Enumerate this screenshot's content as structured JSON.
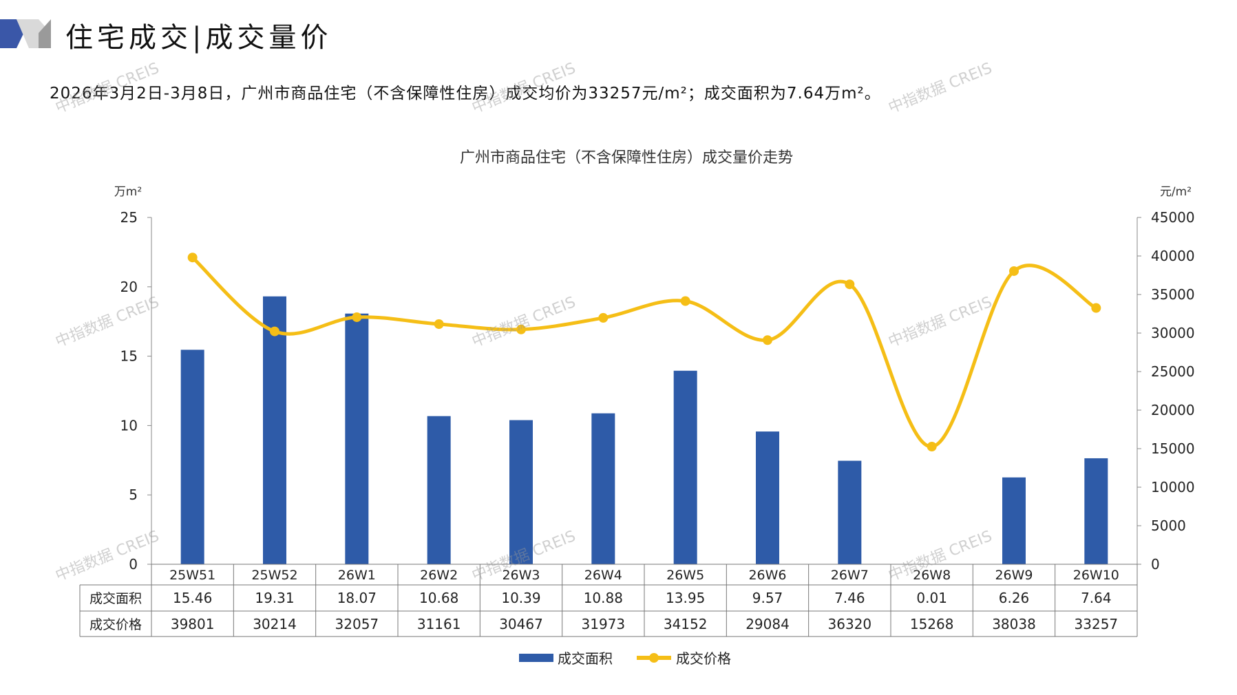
{
  "header": {
    "title": "住宅成交|成交量价",
    "summary": "2026年3月2日-3月8日，广州市商品住宅（不含保障性住房）成交均价为33257元/m²；成交面积为7.64万m²。"
  },
  "watermark": "中指数据 CREIS",
  "colors": {
    "bar": "#2E5BA8",
    "line": "#F5BE16",
    "logo_blue": "#3A57A8",
    "logo_gray": "#9A9A9A"
  },
  "chart_data": {
    "type": "bar+line",
    "title": "广州市商品住宅（不含保障性住房）成交量价走势",
    "categories": [
      "25W51",
      "25W52",
      "26W1",
      "26W2",
      "26W3",
      "26W4",
      "26W5",
      "26W6",
      "26W7",
      "26W8",
      "26W9",
      "26W10"
    ],
    "series": [
      {
        "name": "成交面积",
        "type": "bar",
        "axis": "left",
        "values": [
          15.46,
          19.31,
          18.07,
          10.68,
          10.39,
          10.88,
          13.95,
          9.57,
          7.46,
          0.01,
          6.26,
          7.64
        ],
        "display": [
          "15.46",
          "19.31",
          "18.07",
          "10.68",
          "10.39",
          "10.88",
          "13.95",
          "9.57",
          "7.46",
          "0.01",
          "6.26",
          "7.64"
        ]
      },
      {
        "name": "成交价格",
        "type": "line",
        "axis": "right",
        "values": [
          39801,
          30214,
          32057,
          31161,
          30467,
          31973,
          34152,
          29084,
          36320,
          15268,
          38038,
          33257
        ]
      }
    ],
    "ylabel_left": "万m²",
    "ylabel_right": "元/m²",
    "ylim_left": [
      0,
      25
    ],
    "yticks_left": [
      0,
      5,
      10,
      15,
      20,
      25
    ],
    "ylim_right": [
      0,
      45000
    ],
    "yticks_right": [
      0,
      5000,
      10000,
      15000,
      20000,
      25000,
      30000,
      35000,
      40000,
      45000
    ],
    "legend_position": "bottom",
    "data_table": true
  }
}
